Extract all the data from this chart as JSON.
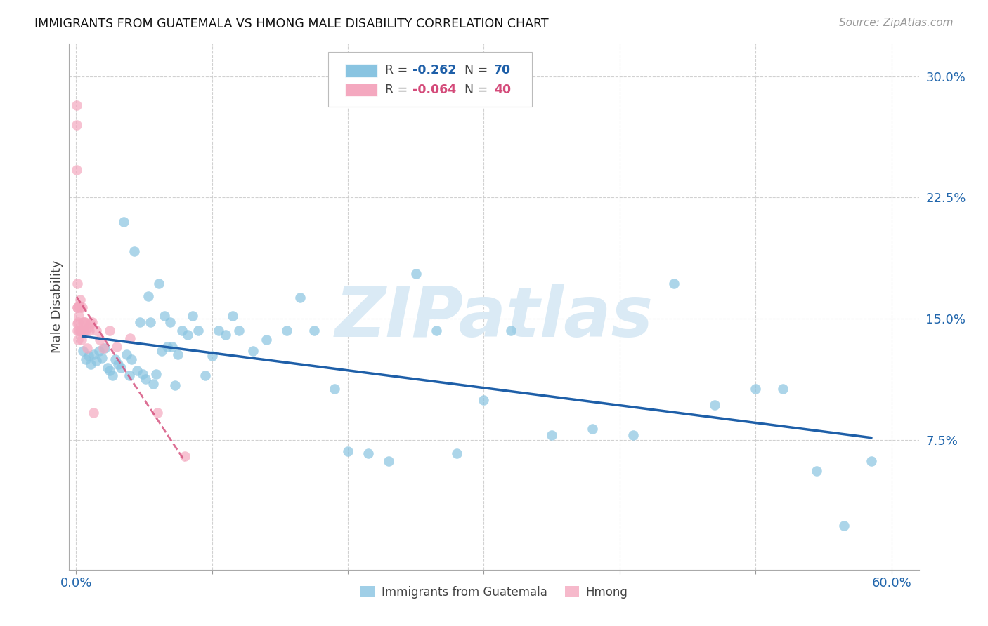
{
  "title": "IMMIGRANTS FROM GUATEMALA VS HMONG MALE DISABILITY CORRELATION CHART",
  "source": "Source: ZipAtlas.com",
  "ylabel": "Male Disability",
  "xlim": [
    -0.005,
    0.62
  ],
  "ylim": [
    -0.005,
    0.32
  ],
  "yticks": [
    0.075,
    0.15,
    0.225,
    0.3
  ],
  "ytick_labels": [
    "7.5%",
    "15.0%",
    "22.5%",
    "30.0%"
  ],
  "xticks": [
    0.0,
    0.1,
    0.2,
    0.3,
    0.4,
    0.5,
    0.6
  ],
  "xtick_labels": [
    "0.0%",
    "",
    "",
    "",
    "",
    "",
    "60.0%"
  ],
  "legend_blue_r": "-0.262",
  "legend_blue_n": "70",
  "legend_pink_r": "-0.064",
  "legend_pink_n": "40",
  "blue_color": "#89c4e1",
  "pink_color": "#f4a8bf",
  "blue_line_color": "#1e5fa8",
  "pink_line_color": "#d44b7a",
  "axis_color": "#2166ac",
  "text_color": "#444444",
  "watermark_color": "#daeaf5",
  "background_color": "#ffffff",
  "grid_color": "#cccccc",
  "blue_x": [
    0.005,
    0.007,
    0.009,
    0.011,
    0.013,
    0.015,
    0.017,
    0.019,
    0.021,
    0.023,
    0.025,
    0.027,
    0.029,
    0.031,
    0.033,
    0.035,
    0.037,
    0.039,
    0.041,
    0.043,
    0.045,
    0.047,
    0.049,
    0.051,
    0.053,
    0.055,
    0.057,
    0.059,
    0.061,
    0.063,
    0.065,
    0.067,
    0.069,
    0.071,
    0.073,
    0.075,
    0.078,
    0.082,
    0.086,
    0.09,
    0.095,
    0.1,
    0.105,
    0.11,
    0.115,
    0.12,
    0.13,
    0.14,
    0.155,
    0.165,
    0.175,
    0.19,
    0.2,
    0.215,
    0.23,
    0.25,
    0.265,
    0.28,
    0.3,
    0.32,
    0.35,
    0.38,
    0.41,
    0.44,
    0.47,
    0.5,
    0.52,
    0.545,
    0.565,
    0.585
  ],
  "blue_y": [
    0.13,
    0.125,
    0.127,
    0.122,
    0.128,
    0.124,
    0.13,
    0.126,
    0.132,
    0.12,
    0.118,
    0.115,
    0.125,
    0.122,
    0.12,
    0.21,
    0.128,
    0.115,
    0.125,
    0.192,
    0.118,
    0.148,
    0.116,
    0.113,
    0.164,
    0.148,
    0.11,
    0.116,
    0.172,
    0.13,
    0.152,
    0.133,
    0.148,
    0.133,
    0.109,
    0.128,
    0.143,
    0.14,
    0.152,
    0.143,
    0.115,
    0.127,
    0.143,
    0.14,
    0.152,
    0.143,
    0.13,
    0.137,
    0.143,
    0.163,
    0.143,
    0.107,
    0.068,
    0.067,
    0.062,
    0.178,
    0.143,
    0.067,
    0.1,
    0.143,
    0.078,
    0.082,
    0.078,
    0.172,
    0.097,
    0.107,
    0.107,
    0.056,
    0.022,
    0.062
  ],
  "pink_x": [
    0.0005,
    0.0005,
    0.0005,
    0.0008,
    0.001,
    0.001,
    0.0012,
    0.0012,
    0.0015,
    0.0015,
    0.0018,
    0.002,
    0.0022,
    0.0025,
    0.0028,
    0.003,
    0.0032,
    0.0035,
    0.0038,
    0.004,
    0.0045,
    0.005,
    0.0055,
    0.006,
    0.0065,
    0.007,
    0.008,
    0.009,
    0.01,
    0.011,
    0.012,
    0.013,
    0.015,
    0.0175,
    0.02,
    0.025,
    0.03,
    0.04,
    0.06,
    0.08
  ],
  "pink_y": [
    0.282,
    0.27,
    0.242,
    0.172,
    0.157,
    0.157,
    0.147,
    0.143,
    0.137,
    0.148,
    0.152,
    0.143,
    0.158,
    0.158,
    0.143,
    0.162,
    0.157,
    0.143,
    0.143,
    0.137,
    0.157,
    0.148,
    0.143,
    0.148,
    0.148,
    0.143,
    0.132,
    0.145,
    0.143,
    0.147,
    0.148,
    0.092,
    0.143,
    0.137,
    0.132,
    0.143,
    0.133,
    0.138,
    0.092,
    0.065
  ]
}
